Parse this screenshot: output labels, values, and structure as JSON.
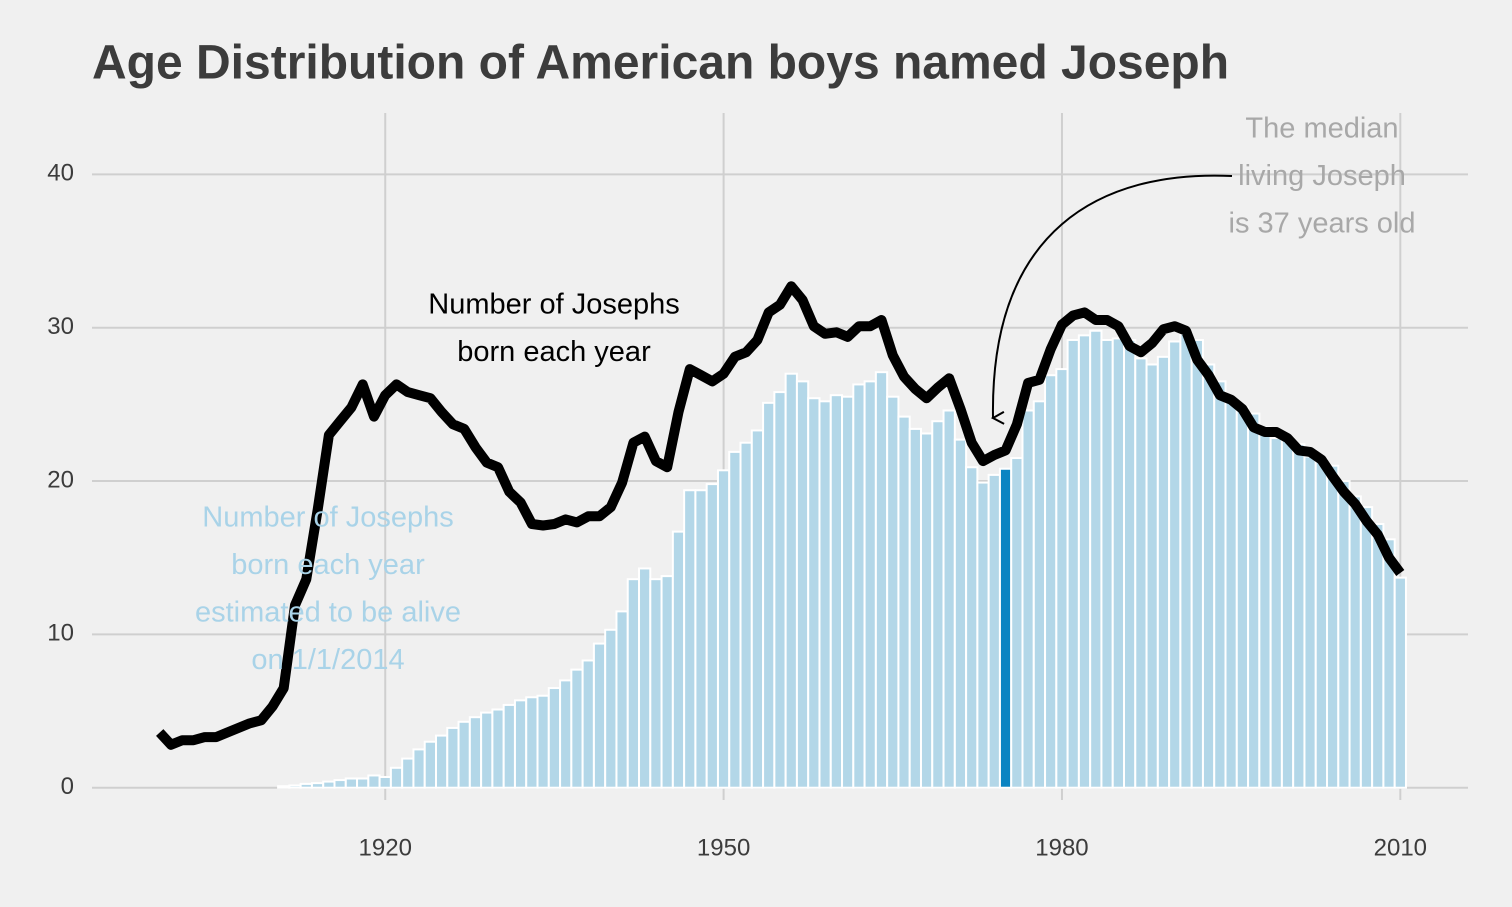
{
  "chart_data": {
    "type": "bar-line",
    "title": "Age Distribution of American boys named Joseph",
    "x": [
      1900,
      1901,
      1902,
      1903,
      1904,
      1905,
      1906,
      1907,
      1908,
      1909,
      1910,
      1911,
      1912,
      1913,
      1914,
      1915,
      1916,
      1917,
      1918,
      1919,
      1920,
      1921,
      1922,
      1923,
      1924,
      1925,
      1926,
      1927,
      1928,
      1929,
      1930,
      1931,
      1932,
      1933,
      1934,
      1935,
      1936,
      1937,
      1938,
      1939,
      1940,
      1941,
      1942,
      1943,
      1944,
      1945,
      1946,
      1947,
      1948,
      1949,
      1950,
      1951,
      1952,
      1953,
      1954,
      1955,
      1956,
      1957,
      1958,
      1959,
      1960,
      1961,
      1962,
      1963,
      1964,
      1965,
      1966,
      1967,
      1968,
      1969,
      1970,
      1971,
      1972,
      1973,
      1974,
      1975,
      1976,
      1977,
      1978,
      1979,
      1980,
      1981,
      1982,
      1983,
      1984,
      1985,
      1986,
      1987,
      1988,
      1989,
      1990,
      1991,
      1992,
      1993,
      1994,
      1995,
      1996,
      1997,
      1998,
      1999,
      2000,
      2001,
      2002,
      2003,
      2004,
      2005,
      2006,
      2007,
      2008,
      2009,
      2010
    ],
    "series": [
      {
        "kind": "bar",
        "color": "#b3d7e8",
        "highlight_color": "#0b84c2",
        "values": [
          0,
          0,
          0,
          0,
          0,
          0,
          0,
          0,
          0,
          0,
          0,
          0.1,
          0.15,
          0.25,
          0.3,
          0.4,
          0.5,
          0.6,
          0.6,
          0.8,
          0.7,
          1.3,
          1.9,
          2.5,
          3.0,
          3.4,
          3.9,
          4.3,
          4.6,
          4.9,
          5.1,
          5.4,
          5.7,
          5.9,
          6.0,
          6.5,
          7.0,
          7.7,
          8.3,
          9.4,
          10.3,
          11.5,
          13.6,
          14.3,
          13.6,
          13.8,
          16.7,
          19.4,
          19.4,
          19.8,
          20.7,
          21.9,
          22.5,
          23.3,
          25.1,
          25.8,
          27.0,
          26.5,
          25.4,
          25.2,
          25.6,
          25.5,
          26.3,
          26.5,
          27.1,
          25.5,
          24.2,
          23.4,
          23.1,
          23.9,
          24.6,
          22.7,
          20.9,
          19.9,
          20.4,
          20.8,
          21.5,
          24.6,
          25.2,
          26.9,
          27.3,
          29.2,
          29.5,
          29.8,
          29.2,
          29.3,
          29.2,
          28.0,
          27.6,
          28.1,
          29.1,
          29.6,
          29.2,
          27.6,
          26.5,
          25.3,
          24.8,
          24.4,
          23.5,
          22.8,
          22.8,
          22.4,
          21.6,
          21.4,
          21.0,
          20.0,
          19.0,
          18.3,
          17.2,
          16.2,
          13.7
        ]
      },
      {
        "kind": "line",
        "color": "#000000",
        "values": [
          3.6,
          2.8,
          3.1,
          3.1,
          3.3,
          3.3,
          3.6,
          3.9,
          4.2,
          4.4,
          5.3,
          6.5,
          11.9,
          13.6,
          18.1,
          23.0,
          23.9,
          24.8,
          26.3,
          24.2,
          25.6,
          26.3,
          25.8,
          25.6,
          25.4,
          24.5,
          23.7,
          23.4,
          22.2,
          21.2,
          20.9,
          19.3,
          18.6,
          17.2,
          17.1,
          17.2,
          17.5,
          17.3,
          17.7,
          17.7,
          18.3,
          19.9,
          22.5,
          22.9,
          21.3,
          20.9,
          24.5,
          27.3,
          26.9,
          26.5,
          27.0,
          28.1,
          28.4,
          29.2,
          31.0,
          31.5,
          32.7,
          31.8,
          30.1,
          29.6,
          29.7,
          29.4,
          30.1,
          30.1,
          30.5,
          28.2,
          26.8,
          26.0,
          25.4,
          26.1,
          26.7,
          24.7,
          22.5,
          21.3,
          21.7,
          22.0,
          23.7,
          26.4,
          26.6,
          28.6,
          30.2,
          30.8,
          31.0,
          30.5,
          30.5,
          30.1,
          28.8,
          28.4,
          29.0,
          29.9,
          30.1,
          29.8,
          27.9,
          26.9,
          25.6,
          25.3,
          24.7,
          23.5,
          23.2,
          23.2,
          22.8,
          22.0,
          21.9,
          21.4,
          20.3,
          19.3,
          18.5,
          17.4,
          16.5,
          15.0,
          14.0
        ]
      }
    ],
    "highlight_x": 1975,
    "xlim": [
      1894,
      2016
    ],
    "xticks": [
      1920,
      1950,
      1980,
      2010
    ],
    "ylim": [
      -0.8,
      44
    ],
    "yticks": [
      0,
      10,
      20,
      30,
      40
    ],
    "grid": true,
    "annotations": [
      {
        "lines": [
          "Number of Josephs",
          "born each year"
        ],
        "color": "#000000"
      },
      {
        "lines": [
          "Number of Josephs",
          "born each year",
          "estimated to be alive",
          "on 1/1/2014"
        ],
        "color": "#a9d3e8"
      },
      {
        "lines": [
          "The median",
          "living Joseph",
          "is 37 years old"
        ],
        "color": "#a8a8a8"
      }
    ]
  }
}
